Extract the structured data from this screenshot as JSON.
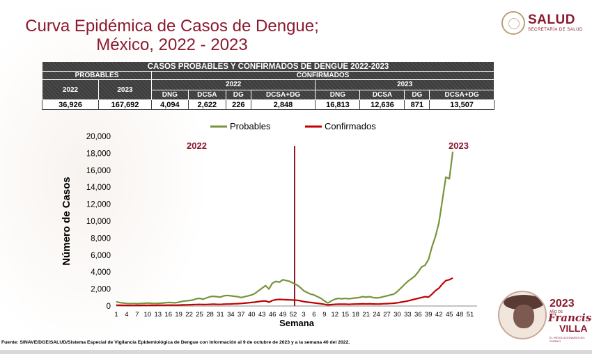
{
  "header": {
    "title_line1": "Curva Epidémica de Casos de Dengue;",
    "title_line2": "México, 2022 - 2023"
  },
  "logo": {
    "name": "SALUD",
    "subtitle": "SECRETARÍA DE SALUD"
  },
  "table": {
    "title": "CASOS PROBABLES Y CONFIRMADOS DE DENGUE 2022-2023",
    "group_probables": "PROBABLES",
    "group_confirmados": "CONFIRMADOS",
    "year_2022": "2022",
    "year_2023": "2023",
    "sub_headers": [
      "DNG",
      "DCSA",
      "DG",
      "DCSA+DG"
    ],
    "probables_values": [
      "36,926",
      "167,692"
    ],
    "confirmados_2022_values": [
      "4,094",
      "2,622",
      "226",
      "2,848"
    ],
    "confirmados_2023_values": [
      "16,813",
      "12,636",
      "871",
      "13,507"
    ]
  },
  "chart_data": {
    "type": "line",
    "ylabel": "Número de Casos",
    "xlabel": "Semana",
    "ylim": [
      0,
      20000
    ],
    "yticks": [
      "0",
      "2,000",
      "4,000",
      "6,000",
      "8,000",
      "10,000",
      "12,000",
      "14,000",
      "16,000",
      "18,000",
      "20,000"
    ],
    "xtick_labels": [
      "1",
      "4",
      "7",
      "10",
      "13",
      "16",
      "19",
      "22",
      "25",
      "28",
      "31",
      "34",
      "37",
      "40",
      "43",
      "46",
      "49",
      "52",
      "3",
      "6",
      "9",
      "12",
      "15",
      "18",
      "21",
      "24",
      "27",
      "30",
      "33",
      "36",
      "39",
      "42",
      "45",
      "48",
      "51"
    ],
    "annotation_left": "2022",
    "annotation_right": "2023",
    "legend_position": "top",
    "divider_at_week_index": 52,
    "series": [
      {
        "name": "Probables",
        "color": "#77933c",
        "values": [
          500,
          400,
          350,
          300,
          280,
          300,
          280,
          300,
          320,
          350,
          330,
          300,
          320,
          340,
          380,
          420,
          400,
          380,
          450,
          550,
          600,
          650,
          700,
          850,
          900,
          800,
          950,
          1100,
          1150,
          1100,
          1050,
          1200,
          1250,
          1200,
          1150,
          1100,
          1000,
          1100,
          1200,
          1300,
          1500,
          1800,
          2100,
          2400,
          2000,
          2700,
          2900,
          2800,
          3100,
          3000,
          2900,
          2700,
          2500,
          2200,
          1800,
          1600,
          1400,
          1300,
          1100,
          900,
          600,
          350,
          600,
          800,
          900,
          850,
          900,
          850,
          900,
          950,
          1000,
          1100,
          1050,
          1100,
          1000,
          950,
          1000,
          1100,
          1200,
          1300,
          1400,
          1700,
          2100,
          2500,
          2900,
          3200,
          3500,
          4000,
          4600,
          4800,
          5500,
          7000,
          8200,
          9800,
          12500,
          15200,
          15000,
          18200
        ]
      },
      {
        "name": "Confirmados",
        "color": "#c00000",
        "values": [
          100,
          90,
          80,
          70,
          60,
          65,
          70,
          75,
          80,
          85,
          90,
          85,
          90,
          95,
          100,
          110,
          105,
          100,
          110,
          130,
          140,
          150,
          160,
          180,
          190,
          170,
          180,
          200,
          210,
          200,
          190,
          210,
          230,
          240,
          260,
          280,
          300,
          340,
          380,
          420,
          460,
          520,
          580,
          600,
          450,
          650,
          750,
          780,
          760,
          740,
          720,
          700,
          680,
          620,
          520,
          470,
          420,
          370,
          320,
          260,
          200,
          130,
          160,
          200,
          220,
          210,
          220,
          200,
          220,
          230,
          240,
          250,
          240,
          250,
          240,
          230,
          240,
          260,
          280,
          300,
          330,
          380,
          450,
          520,
          600,
          700,
          800,
          900,
          1000,
          1100,
          1050,
          1400,
          1800,
          2100,
          2600,
          3000,
          3100,
          3300
        ]
      }
    ]
  },
  "footer": {
    "source": "Fuente: SINAVE/DGE/SALUD/Sistema Especial de Vigilancia Epidemiológica de Dengue con Información al 9 de octubre de 2023 y a la semana 40 del 2022."
  },
  "badge": {
    "year": "2023",
    "small": "AÑO DE",
    "name1": "Francisco",
    "name2": "VILLA",
    "tagline": "EL REVOLUCIONARIO DEL PUEBLO"
  }
}
